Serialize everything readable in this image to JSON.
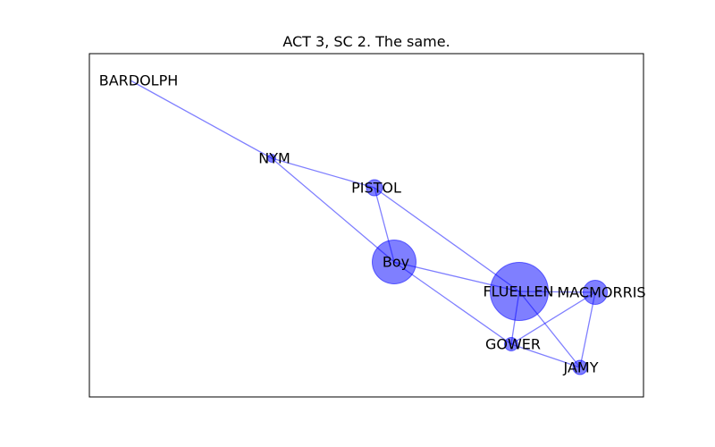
{
  "title": "ACT 3, SC 2. The same.",
  "colors": {
    "node": "#0000ff",
    "edge": "#0000ff",
    "frame": "#000000",
    "label": "#000000"
  },
  "graph": {
    "nodes": [
      {
        "id": "BARDOLPH",
        "label": "BARDOLPH",
        "weight": 0
      },
      {
        "id": "NYM",
        "label": "NYM",
        "weight": 1
      },
      {
        "id": "PISTOL",
        "label": "PISTOL",
        "weight": 2
      },
      {
        "id": "Boy",
        "label": "Boy",
        "weight": 6
      },
      {
        "id": "FLUELLEN",
        "label": "FLUELLEN",
        "weight": 10
      },
      {
        "id": "MACMORRIS",
        "label": "MACMORRIS",
        "weight": 3
      },
      {
        "id": "GOWER",
        "label": "GOWER",
        "weight": 1.5
      },
      {
        "id": "JAMY",
        "label": "JAMY",
        "weight": 1.5
      }
    ],
    "edges": [
      [
        "BARDOLPH",
        "NYM"
      ],
      [
        "NYM",
        "PISTOL"
      ],
      [
        "NYM",
        "Boy"
      ],
      [
        "PISTOL",
        "Boy"
      ],
      [
        "PISTOL",
        "FLUELLEN"
      ],
      [
        "Boy",
        "FLUELLEN"
      ],
      [
        "Boy",
        "GOWER"
      ],
      [
        "FLUELLEN",
        "MACMORRIS"
      ],
      [
        "FLUELLEN",
        "GOWER"
      ],
      [
        "FLUELLEN",
        "JAMY"
      ],
      [
        "MACMORRIS",
        "GOWER"
      ],
      [
        "MACMORRIS",
        "JAMY"
      ],
      [
        "GOWER",
        "JAMY"
      ]
    ]
  }
}
